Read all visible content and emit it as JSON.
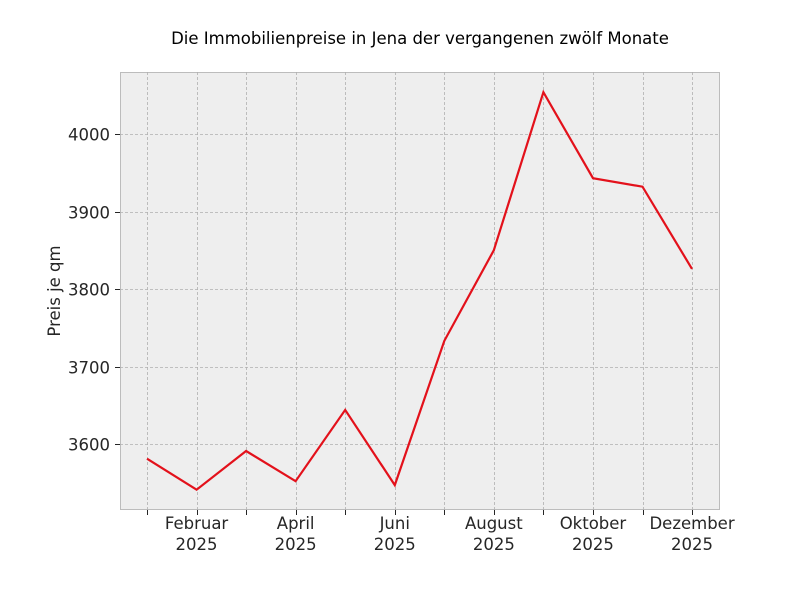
{
  "chart_data": {
    "type": "line",
    "title": "Die Immobilienpreise in Jena der vergangenen zwölf Monate",
    "xlabel": "",
    "ylabel": "Preis je qm",
    "x": [
      "2025-01",
      "2025-02",
      "2025-03",
      "2025-04",
      "2025-05",
      "2025-06",
      "2025-07",
      "2025-08",
      "2025-09",
      "2025-10",
      "2025-11",
      "2025-12"
    ],
    "series": [
      {
        "name": "Preis je qm",
        "color": "#e3111b",
        "values": [
          3581,
          3541,
          3591,
          3552,
          3644,
          3547,
          3733,
          3850,
          4054,
          3943,
          3932,
          3826
        ]
      }
    ],
    "ylim": [
      3515,
      4081
    ],
    "yticks": [
      3600,
      3700,
      3800,
      3900,
      4000
    ],
    "xtick_labels": [
      {
        "month": "Februar",
        "year": "2025",
        "index": 1
      },
      {
        "month": "April",
        "year": "2025",
        "index": 3
      },
      {
        "month": "Juni",
        "year": "2025",
        "index": 5
      },
      {
        "month": "August",
        "year": "2025",
        "index": 7
      },
      {
        "month": "Oktober",
        "year": "2025",
        "index": 9
      },
      {
        "month": "Dezember",
        "year": "2025",
        "index": 11
      }
    ],
    "grid": true,
    "legend": "none",
    "colors": {
      "plot_bg": "#eeeeee",
      "grid": "#b0b0b0",
      "spine": "#bcbcbc",
      "line": "#e3111b"
    }
  }
}
